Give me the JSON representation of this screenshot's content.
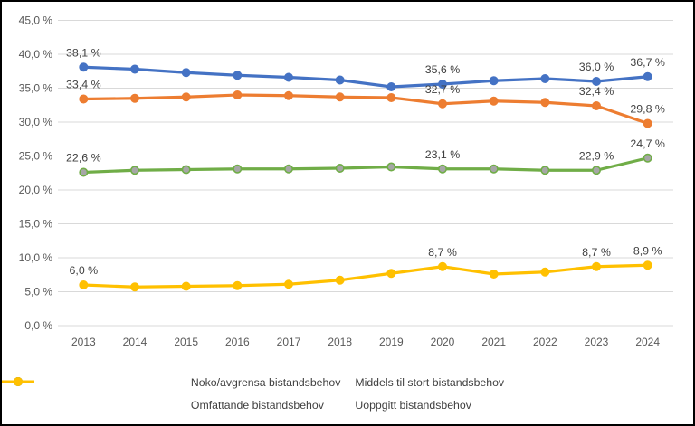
{
  "chart_data": {
    "type": "line",
    "title": "",
    "xlabel": "",
    "ylabel": "",
    "ylim": [
      0,
      45
    ],
    "grid": true,
    "legend_position": "bottom",
    "background_color": "#ffffff",
    "frame_border_color": "#000000",
    "grid_color": "#d9d9d9",
    "axis_text_color": "#595959",
    "point_label_color": "#404040",
    "categories": [
      "2013",
      "2014",
      "2015",
      "2016",
      "2017",
      "2018",
      "2019",
      "2020",
      "2021",
      "2022",
      "2023",
      "2024"
    ],
    "y_axis": {
      "min": 0,
      "max": 45,
      "step": 5,
      "tick_labels": [
        "0,0 %",
        "5,0 %",
        "10,0 %",
        "15,0 %",
        "20,0 %",
        "25,0 %",
        "30,0 %",
        "35,0 %",
        "40,0 %",
        "45,0 %"
      ]
    },
    "series": [
      {
        "name": "Noko/avgrensa bistandsbehov",
        "color": "#4472c4",
        "marker_fill": "#4472c4",
        "values": [
          38.1,
          37.8,
          37.3,
          36.9,
          36.6,
          36.2,
          35.2,
          35.6,
          36.1,
          36.4,
          36.0,
          36.7
        ],
        "point_labels": {
          "2013": "38,1 %",
          "2020": "35,6 %",
          "2023": "36,0 %",
          "2024": "36,7 %"
        }
      },
      {
        "name": "Middels til stort bistandsbehov",
        "color": "#ed7d31",
        "marker_fill": "#ed7d31",
        "values": [
          33.4,
          33.5,
          33.7,
          34.0,
          33.9,
          33.7,
          33.6,
          32.7,
          33.1,
          32.9,
          32.4,
          29.8
        ],
        "point_labels": {
          "2013": "33,4 %",
          "2020": "32,7 %",
          "2023": "32,4 %",
          "2024": "29,8 %"
        }
      },
      {
        "name": "Omfattande bistandsbehov",
        "color": "#70ad47",
        "marker_fill": "#a6a6a6",
        "values": [
          22.6,
          22.9,
          23.0,
          23.1,
          23.1,
          23.2,
          23.4,
          23.1,
          23.1,
          22.9,
          22.9,
          24.7
        ],
        "point_labels": {
          "2013": "22,6 %",
          "2020": "23,1 %",
          "2023": "22,9 %",
          "2024": "24,7 %"
        }
      },
      {
        "name": "Uoppgitt bistandsbehov",
        "color": "#ffc000",
        "marker_fill": "#ffc000",
        "values": [
          6.0,
          5.7,
          5.8,
          5.9,
          6.1,
          6.7,
          7.7,
          8.7,
          7.6,
          7.9,
          8.7,
          8.9
        ],
        "point_labels": {
          "2013": "6,0 %",
          "2020": "8,7 %",
          "2023": "8,7 %",
          "2024": "8,9 %"
        }
      }
    ]
  }
}
